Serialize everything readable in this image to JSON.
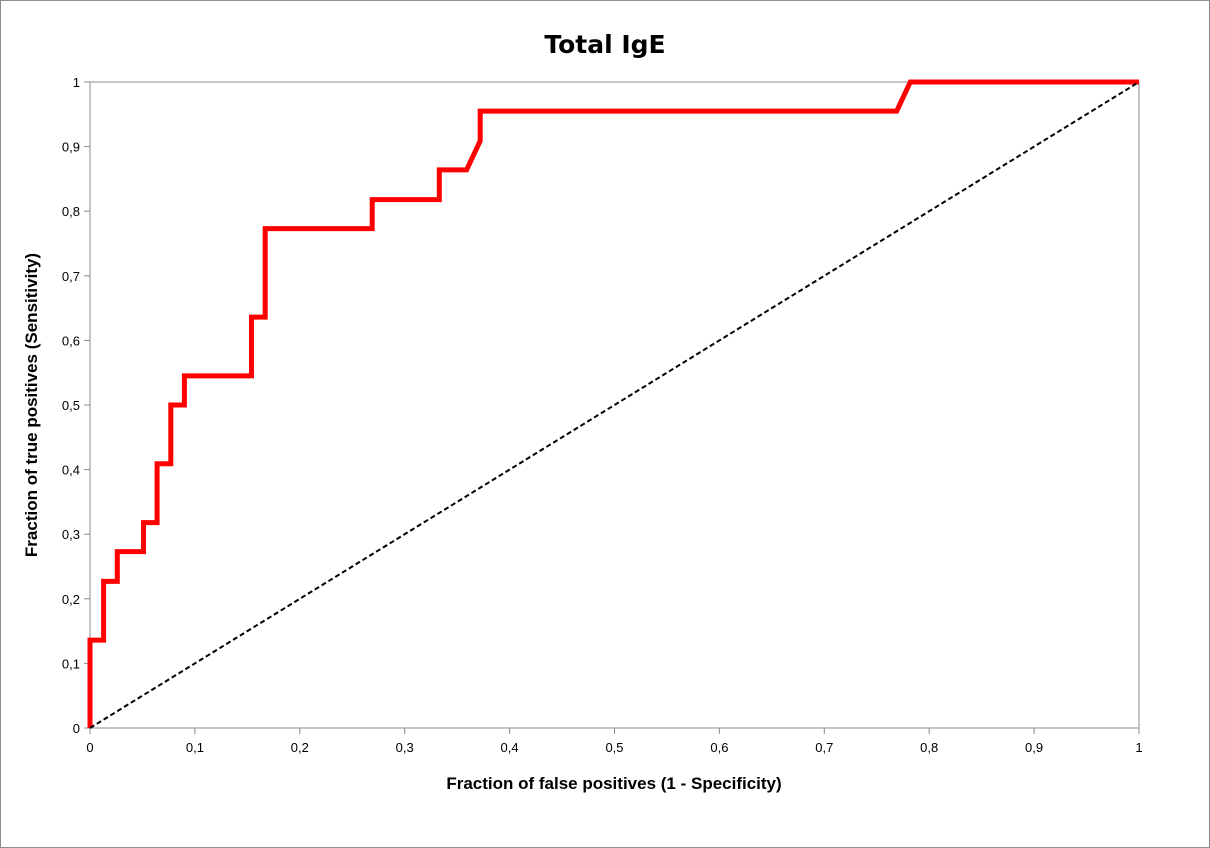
{
  "chart_data": {
    "type": "line",
    "title": "Total IgE",
    "xlabel": "Fraction of false positives (1 - Specificity)",
    "ylabel": "Fraction of true positives (Sensitivity)",
    "xlim": [
      0,
      1
    ],
    "ylim": [
      0,
      1
    ],
    "x_ticks": [
      "0",
      "0,1",
      "0,2",
      "0,3",
      "0,4",
      "0,5",
      "0,6",
      "0,7",
      "0,8",
      "0,9",
      "1"
    ],
    "y_ticks": [
      "0",
      "0,1",
      "0,2",
      "0,3",
      "0,4",
      "0,5",
      "0,6",
      "0,7",
      "0,8",
      "0,9",
      "1"
    ],
    "grid": false,
    "legend": "none",
    "series": [
      {
        "style": "solid",
        "color": "#ff0000",
        "points": [
          [
            0,
            0
          ],
          [
            0,
            0.136
          ],
          [
            0.013,
            0.136
          ],
          [
            0.013,
            0.227
          ],
          [
            0.026,
            0.227
          ],
          [
            0.026,
            0.273
          ],
          [
            0.051,
            0.273
          ],
          [
            0.051,
            0.318
          ],
          [
            0.064,
            0.318
          ],
          [
            0.064,
            0.409
          ],
          [
            0.077,
            0.409
          ],
          [
            0.077,
            0.5
          ],
          [
            0.09,
            0.5
          ],
          [
            0.09,
            0.545
          ],
          [
            0.154,
            0.545
          ],
          [
            0.154,
            0.636
          ],
          [
            0.167,
            0.636
          ],
          [
            0.167,
            0.773
          ],
          [
            0.269,
            0.773
          ],
          [
            0.269,
            0.818
          ],
          [
            0.333,
            0.818
          ],
          [
            0.333,
            0.864
          ],
          [
            0.359,
            0.864
          ],
          [
            0.372,
            0.909
          ],
          [
            0.372,
            0.955
          ],
          [
            0.769,
            0.955
          ],
          [
            0.782,
            1
          ],
          [
            1,
            1
          ]
        ]
      },
      {
        "style": "dashed",
        "color": "#000000",
        "points": [
          [
            0,
            0
          ],
          [
            1,
            1
          ]
        ]
      }
    ]
  }
}
